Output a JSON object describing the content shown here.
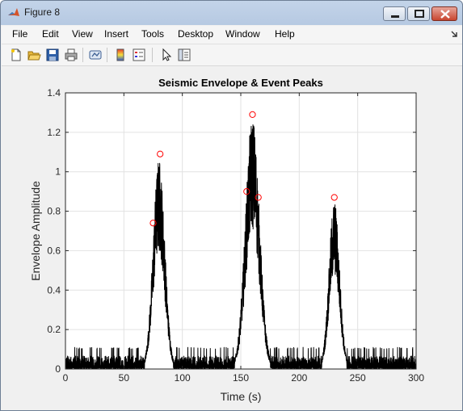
{
  "window": {
    "title": "Figure 8"
  },
  "menu": [
    "File",
    "Edit",
    "View",
    "Insert",
    "Tools",
    "Desktop",
    "Window",
    "Help"
  ],
  "toolbar_icons": [
    "new-figure-icon",
    "open-file-icon",
    "save-icon",
    "print-icon",
    "link-plot-icon",
    "insert-colorbar-icon",
    "insert-legend-icon",
    "edit-plot-pointer-icon",
    "plot-browser-icon"
  ],
  "chart_data": {
    "type": "line",
    "title": "Seismic Envelope & Event Peaks",
    "xlabel": "Time (s)",
    "ylabel": "Envelope Amplitude",
    "xlim": [
      0,
      300
    ],
    "ylim": [
      0,
      1.4
    ],
    "xticks": [
      "0",
      "50",
      "100",
      "150",
      "200",
      "250",
      "300"
    ],
    "yticks": [
      "0",
      "0.2",
      "0.4",
      "0.6",
      "0.8",
      "1",
      "1.2",
      "1.4"
    ],
    "grid": true,
    "series_color": "#000000",
    "noise_floor_range": [
      0.0,
      0.11
    ],
    "events": [
      {
        "center": 80,
        "peak": 1.07,
        "width": 5
      },
      {
        "center": 160,
        "peak": 1.28,
        "width": 6
      },
      {
        "center": 230,
        "peak": 0.86,
        "width": 4.5
      }
    ],
    "peaks": {
      "marker_color": "#ff0000",
      "x": [
        75,
        81,
        155,
        160,
        165,
        230
      ],
      "y": [
        0.74,
        1.09,
        0.9,
        1.29,
        0.87,
        0.87
      ]
    }
  }
}
